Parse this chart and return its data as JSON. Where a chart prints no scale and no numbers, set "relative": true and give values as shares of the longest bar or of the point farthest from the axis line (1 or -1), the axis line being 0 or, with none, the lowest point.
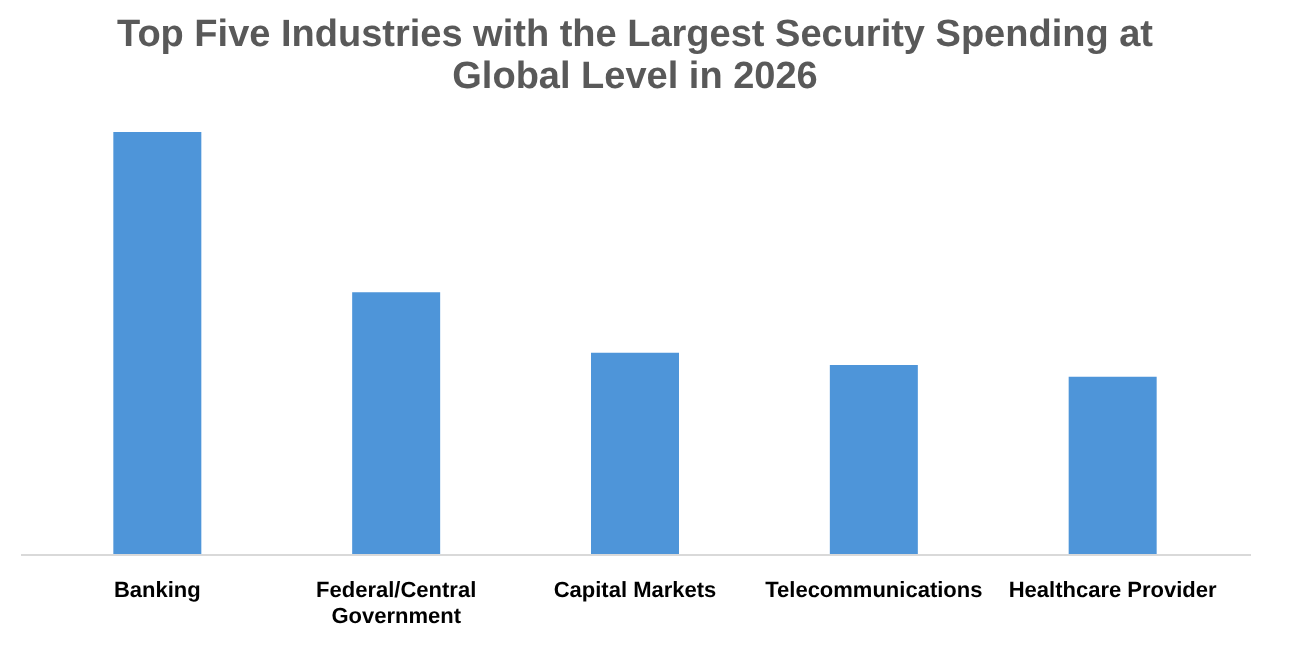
{
  "chart_data": {
    "type": "bar",
    "title": "Top Five Industries with the Largest Security Spending at Global Level in 2026",
    "categories": [
      "Banking",
      "Federal/Central Government",
      "Capital Markets",
      "Telecommunications",
      "Healthcare Provider"
    ],
    "values": [
      1,
      0.62,
      0.477,
      0.448,
      0.42
    ],
    "color": "#4e95d9",
    "relative": true,
    "grid": false
  }
}
